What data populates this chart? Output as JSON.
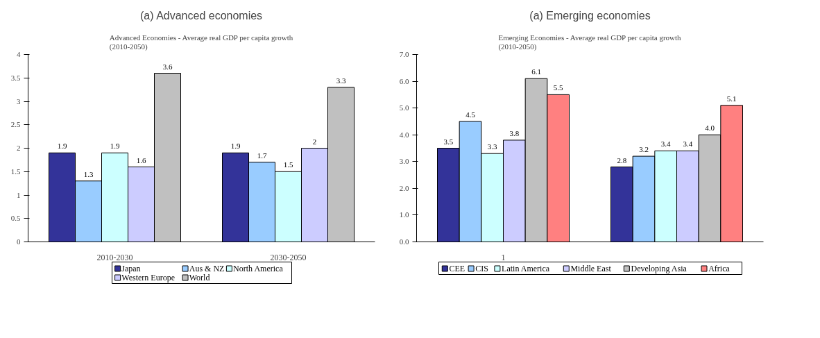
{
  "chart_data": [
    {
      "type": "bar",
      "title": "(a) Advanced economies",
      "subtitle": "Advanced Economies - Average real GDP per capita growth\n(2010-2050)",
      "categories": [
        "2010-2030",
        "2030-2050"
      ],
      "series": [
        {
          "name": "Japan",
          "color": "#333399",
          "values": [
            1.9,
            1.9
          ],
          "value_labels": [
            "1.9",
            "1.9"
          ]
        },
        {
          "name": "Aus & NZ",
          "color": "#99ccff",
          "values": [
            1.3,
            1.7
          ],
          "value_labels": [
            "1.3",
            "1.7"
          ]
        },
        {
          "name": "North America",
          "color": "#ccffff",
          "values": [
            1.9,
            1.5
          ],
          "value_labels": [
            "1.9",
            "1.5"
          ]
        },
        {
          "name": "Western Europe",
          "color": "#ccccff",
          "values": [
            1.6,
            2.0
          ],
          "value_labels": [
            "1.6",
            "2"
          ]
        },
        {
          "name": "World",
          "color": "#c0c0c0",
          "values": [
            3.6,
            3.3
          ],
          "value_labels": [
            "3.6",
            "3.3"
          ]
        }
      ],
      "ylim": [
        0,
        4
      ],
      "yticks": [
        0,
        0.5,
        1,
        1.5,
        2,
        2.5,
        3,
        3.5,
        4
      ],
      "grid": false,
      "legend": "bottom"
    },
    {
      "type": "bar",
      "title": "(a) Emerging economies",
      "subtitle": "Emerging Economies - Average real GDP per capita growth\n(2010-2050)",
      "categories": [
        "1",
        null
      ],
      "series": [
        {
          "name": "CEE",
          "color": "#333399",
          "values": [
            3.5,
            2.8
          ],
          "value_labels": [
            "3.5",
            "2.8"
          ]
        },
        {
          "name": "CIS",
          "color": "#99ccff",
          "values": [
            4.5,
            3.2
          ],
          "value_labels": [
            "4.5",
            "3.2"
          ]
        },
        {
          "name": "Latin America",
          "color": "#ccffff",
          "values": [
            3.3,
            3.4
          ],
          "value_labels": [
            "3.3",
            "3.4"
          ]
        },
        {
          "name": "Middle East",
          "color": "#ccccff",
          "values": [
            3.8,
            3.4
          ],
          "value_labels": [
            "3.8",
            "3.4"
          ]
        },
        {
          "name": "Developing Asia",
          "color": "#c0c0c0",
          "values": [
            6.1,
            4.0
          ],
          "value_labels": [
            "6.1",
            "4.0"
          ]
        },
        {
          "name": "Africa",
          "color": "#ff8080",
          "values": [
            5.5,
            5.1
          ],
          "value_labels": [
            "5.5",
            "5.1"
          ]
        }
      ],
      "ylim": [
        0,
        7
      ],
      "yticks": [
        {
          "value": 0,
          "label": "0.0"
        },
        {
          "value": 1,
          "label": "1.0"
        },
        {
          "value": 2,
          "label": "2.0"
        },
        {
          "value": 3,
          "label": "3.0"
        },
        {
          "value": 4,
          "label": "4.0"
        },
        {
          "value": 5,
          "label": "5.0"
        },
        {
          "value": 6,
          "label": "6.0"
        },
        {
          "value": 7,
          "label": "7.0"
        }
      ],
      "grid": false,
      "legend": "bottom"
    }
  ]
}
